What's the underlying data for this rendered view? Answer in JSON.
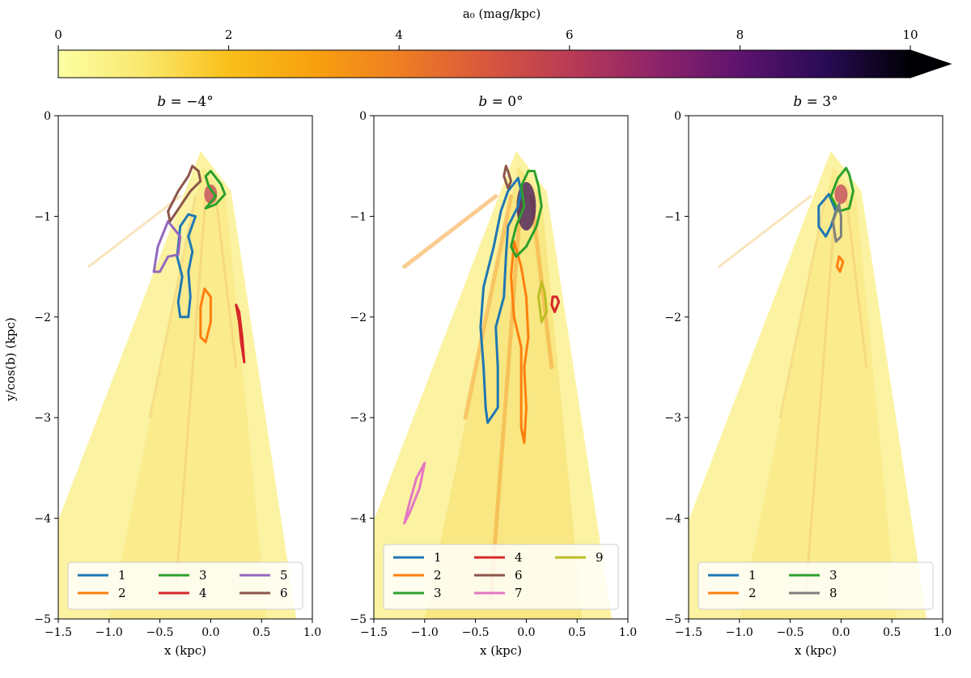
{
  "chart_data": [
    {
      "type": "heatmap",
      "title_prefix": "b = ",
      "title_value": "−4°",
      "xlabel": "x (kpc)",
      "ylabel": "y/cos(b) (kpc)",
      "xlim": [
        -1.5,
        1.0
      ],
      "ylim": [
        -5,
        0
      ],
      "xticks": [
        "−1.5",
        "−1.0",
        "−0.5",
        "0.0",
        "0.5",
        "1.0"
      ],
      "yticks": [
        "0",
        "−1",
        "−2",
        "−3",
        "−4",
        "−5"
      ],
      "legend": [
        "1",
        "2",
        "3",
        "4",
        "5",
        "6"
      ],
      "legend_location": "lower center",
      "legend_columns": 3,
      "contours": [
        {
          "id": "1",
          "points": [
            [
              -0.22,
              -0.98
            ],
            [
              -0.3,
              -1.1
            ],
            [
              -0.33,
              -1.4
            ],
            [
              -0.28,
              -1.6
            ],
            [
              -0.32,
              -1.85
            ],
            [
              -0.3,
              -2.0
            ],
            [
              -0.22,
              -2.0
            ],
            [
              -0.2,
              -1.8
            ],
            [
              -0.22,
              -1.55
            ],
            [
              -0.18,
              -1.35
            ],
            [
              -0.22,
              -1.2
            ],
            [
              -0.15,
              -1.0
            ],
            [
              -0.22,
              -0.98
            ]
          ]
        },
        {
          "id": "2",
          "points": [
            [
              -0.06,
              -1.72
            ],
            [
              -0.1,
              -1.9
            ],
            [
              -0.1,
              -2.2
            ],
            [
              -0.05,
              -2.25
            ],
            [
              0.0,
              -2.05
            ],
            [
              0.0,
              -1.8
            ],
            [
              -0.06,
              -1.72
            ]
          ]
        },
        {
          "id": "3",
          "points": [
            [
              -0.05,
              -0.6
            ],
            [
              -0.02,
              -0.7
            ],
            [
              0.05,
              -0.8
            ],
            [
              -0.05,
              -0.92
            ],
            [
              0.05,
              -0.88
            ],
            [
              0.14,
              -0.78
            ],
            [
              0.1,
              -0.68
            ],
            [
              0.0,
              -0.55
            ],
            [
              -0.05,
              -0.6
            ]
          ]
        },
        {
          "id": "4",
          "points": [
            [
              0.25,
              -1.88
            ],
            [
              0.28,
              -2.05
            ],
            [
              0.3,
              -2.25
            ],
            [
              0.33,
              -2.45
            ],
            [
              0.31,
              -2.2
            ],
            [
              0.28,
              -1.95
            ],
            [
              0.25,
              -1.88
            ]
          ]
        },
        {
          "id": "5",
          "points": [
            [
              -0.42,
              -1.05
            ],
            [
              -0.52,
              -1.3
            ],
            [
              -0.56,
              -1.55
            ],
            [
              -0.5,
              -1.55
            ],
            [
              -0.42,
              -1.4
            ],
            [
              -0.32,
              -1.38
            ],
            [
              -0.3,
              -1.2
            ],
            [
              -0.38,
              -1.1
            ],
            [
              -0.42,
              -1.05
            ]
          ]
        },
        {
          "id": "6",
          "points": [
            [
              -0.18,
              -0.5
            ],
            [
              -0.22,
              -0.6
            ],
            [
              -0.32,
              -0.75
            ],
            [
              -0.42,
              -0.95
            ],
            [
              -0.4,
              -1.05
            ],
            [
              -0.3,
              -0.9
            ],
            [
              -0.2,
              -0.75
            ],
            [
              -0.1,
              -0.65
            ],
            [
              -0.12,
              -0.55
            ],
            [
              -0.18,
              -0.5
            ]
          ]
        }
      ]
    },
    {
      "type": "heatmap",
      "title_prefix": "b = ",
      "title_value": "0°",
      "xlabel": "x (kpc)",
      "ylabel": "",
      "xlim": [
        -1.5,
        1.0
      ],
      "ylim": [
        -5,
        0
      ],
      "xticks": [
        "−1.5",
        "−1.0",
        "−0.5",
        "0.0",
        "0.5",
        "1.0"
      ],
      "yticks": [
        "0",
        "−1",
        "−2",
        "−3",
        "−4",
        "−5"
      ],
      "legend": [
        "1",
        "2",
        "3",
        "4",
        "6",
        "7",
        "9"
      ],
      "legend_location": "lower center",
      "legend_columns": 3,
      "contours": [
        {
          "id": "1",
          "points": [
            [
              -0.08,
              -0.62
            ],
            [
              -0.18,
              -0.75
            ],
            [
              -0.25,
              -0.95
            ],
            [
              -0.32,
              -1.3
            ],
            [
              -0.42,
              -1.7
            ],
            [
              -0.45,
              -2.1
            ],
            [
              -0.42,
              -2.5
            ],
            [
              -0.4,
              -2.9
            ],
            [
              -0.38,
              -3.05
            ],
            [
              -0.28,
              -2.9
            ],
            [
              -0.28,
              -2.5
            ],
            [
              -0.3,
              -2.1
            ],
            [
              -0.22,
              -1.8
            ],
            [
              -0.2,
              -1.4
            ],
            [
              -0.18,
              -1.1
            ],
            [
              -0.08,
              -0.9
            ],
            [
              -0.05,
              -0.75
            ],
            [
              -0.08,
              -0.62
            ]
          ]
        },
        {
          "id": "2",
          "points": [
            [
              -0.12,
              -1.25
            ],
            [
              -0.15,
              -1.6
            ],
            [
              -0.12,
              -2.0
            ],
            [
              -0.05,
              -2.3
            ],
            [
              -0.05,
              -2.7
            ],
            [
              -0.05,
              -3.1
            ],
            [
              -0.02,
              -3.25
            ],
            [
              0.0,
              -2.9
            ],
            [
              -0.02,
              -2.5
            ],
            [
              0.02,
              -2.2
            ],
            [
              0.0,
              -1.8
            ],
            [
              -0.05,
              -1.5
            ],
            [
              -0.12,
              -1.25
            ]
          ]
        },
        {
          "id": "3",
          "points": [
            [
              0.02,
              -0.55
            ],
            [
              -0.05,
              -0.7
            ],
            [
              -0.02,
              -0.9
            ],
            [
              -0.1,
              -1.1
            ],
            [
              -0.15,
              -1.3
            ],
            [
              -0.1,
              -1.4
            ],
            [
              0.0,
              -1.3
            ],
            [
              0.1,
              -1.1
            ],
            [
              0.15,
              -0.9
            ],
            [
              0.12,
              -0.7
            ],
            [
              0.08,
              -0.55
            ],
            [
              0.02,
              -0.55
            ]
          ]
        },
        {
          "id": "4",
          "points": [
            [
              0.26,
              -1.8
            ],
            [
              0.25,
              -1.88
            ],
            [
              0.28,
              -1.95
            ],
            [
              0.32,
              -1.85
            ],
            [
              0.3,
              -1.8
            ],
            [
              0.26,
              -1.8
            ]
          ]
        },
        {
          "id": "6",
          "points": [
            [
              -0.2,
              -0.5
            ],
            [
              -0.22,
              -0.6
            ],
            [
              -0.18,
              -0.72
            ],
            [
              -0.15,
              -0.65
            ],
            [
              -0.18,
              -0.55
            ],
            [
              -0.2,
              -0.5
            ]
          ]
        },
        {
          "id": "7",
          "points": [
            [
              -1.0,
              -3.45
            ],
            [
              -1.05,
              -3.7
            ],
            [
              -1.15,
              -3.95
            ],
            [
              -1.2,
              -4.05
            ],
            [
              -1.15,
              -3.85
            ],
            [
              -1.08,
              -3.6
            ],
            [
              -1.0,
              -3.45
            ]
          ]
        },
        {
          "id": "9",
          "points": [
            [
              0.15,
              -1.65
            ],
            [
              0.12,
              -1.8
            ],
            [
              0.15,
              -2.05
            ],
            [
              0.2,
              -1.95
            ],
            [
              0.18,
              -1.75
            ],
            [
              0.15,
              -1.65
            ]
          ]
        }
      ]
    },
    {
      "type": "heatmap",
      "title_prefix": "b = ",
      "title_value": "3°",
      "xlabel": "x (kpc)",
      "ylabel": "",
      "xlim": [
        -1.5,
        1.0
      ],
      "ylim": [
        -5,
        0
      ],
      "xticks": [
        "−1.5",
        "−1.0",
        "−0.5",
        "0.0",
        "0.5",
        "1.0"
      ],
      "yticks": [
        "0",
        "−1",
        "−2",
        "−3",
        "−4",
        "−5"
      ],
      "legend": [
        "1",
        "2",
        "3",
        "8"
      ],
      "legend_location": "lower center",
      "legend_columns": 3,
      "contours": [
        {
          "id": "1",
          "points": [
            [
              -0.12,
              -0.78
            ],
            [
              -0.22,
              -0.9
            ],
            [
              -0.22,
              -1.1
            ],
            [
              -0.15,
              -1.2
            ],
            [
              -0.1,
              -1.1
            ],
            [
              -0.05,
              -0.95
            ],
            [
              -0.12,
              -0.78
            ]
          ]
        },
        {
          "id": "2",
          "points": [
            [
              -0.02,
              -1.4
            ],
            [
              -0.04,
              -1.5
            ],
            [
              -0.01,
              -1.55
            ],
            [
              0.02,
              -1.45
            ],
            [
              -0.02,
              -1.4
            ]
          ]
        },
        {
          "id": "3",
          "points": [
            [
              0.05,
              -0.52
            ],
            [
              -0.03,
              -0.62
            ],
            [
              -0.1,
              -0.8
            ],
            [
              -0.02,
              -0.95
            ],
            [
              0.08,
              -0.92
            ],
            [
              0.12,
              -0.75
            ],
            [
              0.08,
              -0.58
            ],
            [
              0.05,
              -0.52
            ]
          ]
        },
        {
          "id": "8",
          "points": [
            [
              -0.02,
              -0.88
            ],
            [
              -0.08,
              -1.05
            ],
            [
              -0.05,
              -1.25
            ],
            [
              0.0,
              -1.2
            ],
            [
              0.0,
              -1.0
            ],
            [
              -0.02,
              -0.88
            ]
          ]
        }
      ]
    }
  ],
  "colorbar": {
    "label": "a₀ (mag/kpc)",
    "ticks": [
      "0",
      "2",
      "4",
      "6",
      "8",
      "10"
    ],
    "range": [
      0,
      10
    ],
    "extend": "max"
  },
  "series_colors": {
    "1": "#1f77b4",
    "2": "#ff7f0e",
    "3": "#2ca02c",
    "4": "#d62728",
    "5": "#9467bd",
    "6": "#8c564b",
    "7": "#e377c2",
    "8": "#7f7f7f",
    "9": "#bcbd22"
  }
}
